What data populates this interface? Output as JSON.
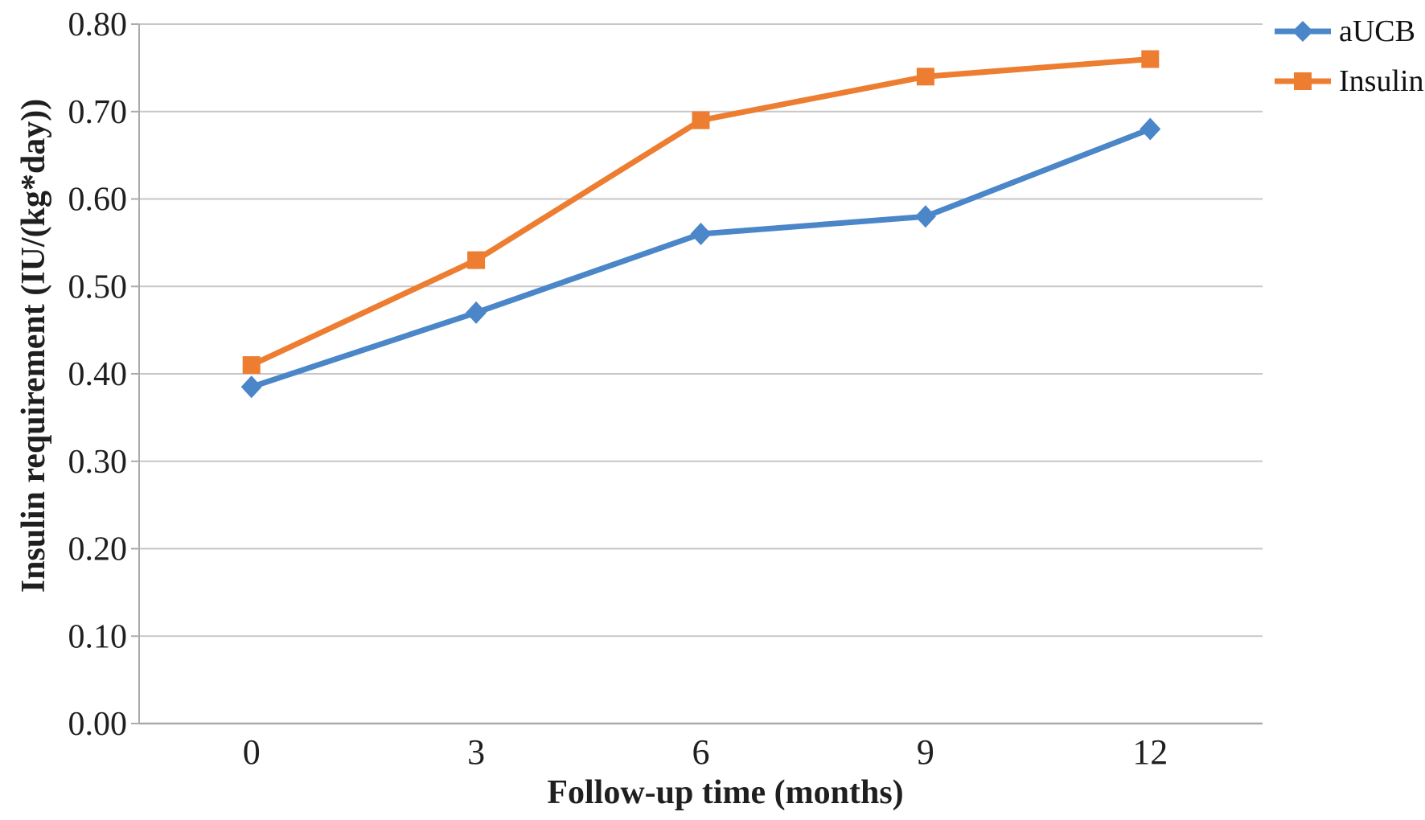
{
  "chart_data": {
    "type": "line",
    "title": "",
    "xlabel": "Follow-up time (months)",
    "ylabel": "Insulin requirement (IU/(kg*day))",
    "categories": [
      0,
      3,
      6,
      9,
      12
    ],
    "xtick_labels": [
      "0",
      "3",
      "6",
      "9",
      "12"
    ],
    "series": [
      {
        "name": "aUCB",
        "values": [
          0.385,
          0.47,
          0.56,
          0.58,
          0.68
        ],
        "color": "#4A86C8",
        "marker": "diamond"
      },
      {
        "name": "Insulin",
        "values": [
          0.41,
          0.53,
          0.69,
          0.74,
          0.76
        ],
        "color": "#ED7D31",
        "marker": "square"
      }
    ],
    "ylim": [
      0.0,
      0.8
    ],
    "ytick_step": 0.1,
    "ytick_labels": [
      "0.00",
      "0.10",
      "0.20",
      "0.30",
      "0.40",
      "0.50",
      "0.60",
      "0.70",
      "0.80"
    ],
    "grid": true,
    "legend_position": "top-right-outside",
    "grid_color": "#C7C7C7",
    "axis_color": "#ABABAB",
    "text_color": "#1F1F1F"
  }
}
